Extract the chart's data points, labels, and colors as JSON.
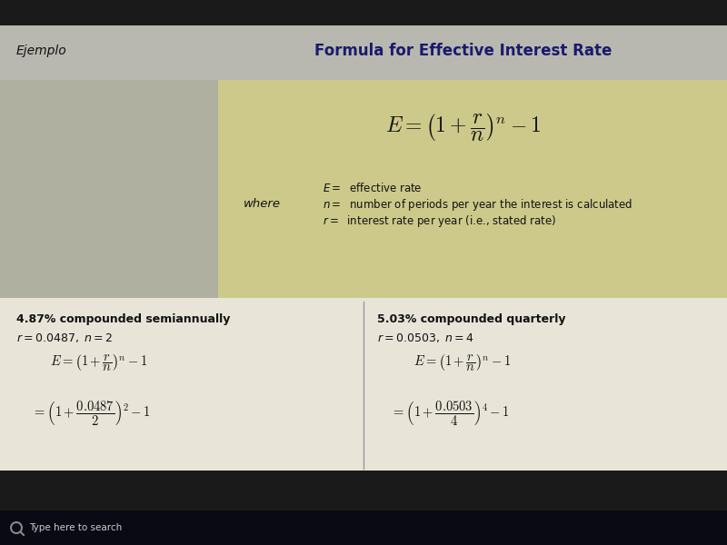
{
  "title_box_color": "#ccc98a",
  "title_text": "Formula for Effective Interest Rate",
  "title_fontsize": 12,
  "title_color": "#1a1a6e",
  "ejemplo_text": "Ejemplo",
  "ejemplo_fontsize": 10,
  "left_bg_color": "#b0b0a0",
  "where_text": "where",
  "bottom_bg_color": "#e8e5d8",
  "left_title": "4.87% compounded semiannually",
  "left_params": "$r = 0.0487,\\; n = 2$",
  "right_title": "5.03% compounded quarterly",
  "right_params": "$r = 0.0503,\\; n = 4$",
  "divider_color": "#999999",
  "body_text_color": "#111111",
  "screen_bg": "#111111",
  "top_bar_color": "#b8b8b0",
  "top_dark_color": "#1a1a1a",
  "taskbar_bg": "#0a0a14",
  "taskbar_text_color": "#cccccc"
}
